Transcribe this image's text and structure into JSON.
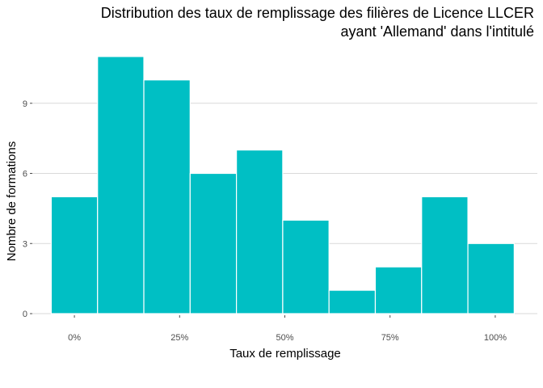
{
  "chart_data": {
    "type": "bar",
    "title_lines": [
      "Distribution des taux de remplissage des filières de Licence LLCER",
      "ayant 'Allemand' dans l'intitulé"
    ],
    "xlabel": "Taux de remplissage",
    "ylabel": "Nombre de formations",
    "bins": [
      {
        "x0": -0.055,
        "x1": 0.055,
        "count": 5
      },
      {
        "x0": 0.055,
        "x1": 0.165,
        "count": 11
      },
      {
        "x0": 0.165,
        "x1": 0.275,
        "count": 10
      },
      {
        "x0": 0.275,
        "x1": 0.385,
        "count": 6
      },
      {
        "x0": 0.385,
        "x1": 0.495,
        "count": 7
      },
      {
        "x0": 0.495,
        "x1": 0.605,
        "count": 4
      },
      {
        "x0": 0.605,
        "x1": 0.715,
        "count": 1
      },
      {
        "x0": 0.715,
        "x1": 0.825,
        "count": 2
      },
      {
        "x0": 0.825,
        "x1": 0.935,
        "count": 5
      },
      {
        "x0": 0.935,
        "x1": 1.045,
        "count": 3
      }
    ],
    "xticks": [
      {
        "value": 0,
        "label": "0%"
      },
      {
        "value": 0.25,
        "label": "25%"
      },
      {
        "value": 0.5,
        "label": "50%"
      },
      {
        "value": 0.75,
        "label": "75%"
      },
      {
        "value": 1.0,
        "label": "100%"
      }
    ],
    "yticks": [
      {
        "value": 0,
        "label": "0"
      },
      {
        "value": 3,
        "label": "3"
      },
      {
        "value": 6,
        "label": "6"
      },
      {
        "value": 9,
        "label": "9"
      }
    ],
    "xlim": [
      -0.1,
      1.1
    ],
    "ylim": [
      0,
      12
    ],
    "grid": "horizontal",
    "bar_color": "#00BFC4"
  }
}
